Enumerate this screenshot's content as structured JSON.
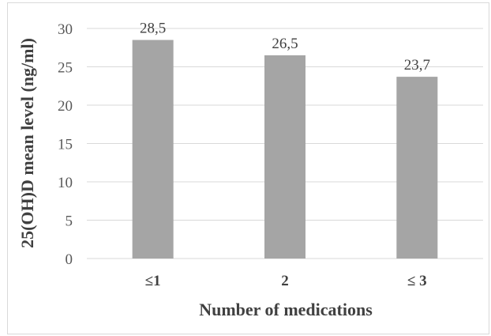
{
  "chart_data": {
    "type": "bar",
    "categories": [
      "≤1",
      "2",
      "≤ 3"
    ],
    "values": [
      28.5,
      26.5,
      23.7
    ],
    "value_labels": [
      "28,5",
      "26,5",
      "23,7"
    ],
    "title": "",
    "xlabel": "Number of medications",
    "ylabel": "25(OH)D mean level (ng/ml)",
    "ylim": [
      0,
      30
    ],
    "yticks": [
      "0",
      "5",
      "10",
      "15",
      "20",
      "25",
      "30"
    ],
    "grid": true,
    "legend": "none",
    "bar_color": "#a5a5a5",
    "grid_color": "#d9d9d9"
  }
}
